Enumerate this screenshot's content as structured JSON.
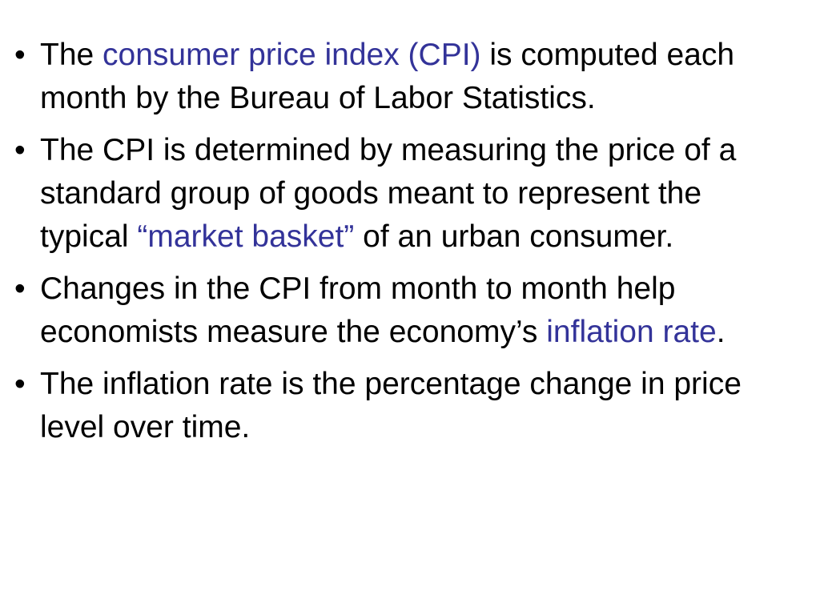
{
  "slide": {
    "bullets": [
      {
        "runs": [
          {
            "text": "The "
          },
          {
            "text": "consumer price index (CPI)",
            "color": "#333399"
          },
          {
            "text": " is computed each month by the Bureau of Labor Statistics."
          }
        ]
      },
      {
        "runs": [
          {
            "text": "The CPI is determined by measuring the price of a standard group of goods meant to represent the typical "
          },
          {
            "text": "“market basket”",
            "color": "#333399"
          },
          {
            "text": " of an urban consumer."
          }
        ]
      },
      {
        "runs": [
          {
            "text": "Changes in the CPI from month to month help economists measure the economy’s "
          },
          {
            "text": "inflation rate",
            "color": "#333399"
          },
          {
            "text": "."
          }
        ]
      },
      {
        "runs": [
          {
            "text": "The inflation rate is the percentage change in price level over time."
          }
        ]
      }
    ]
  }
}
